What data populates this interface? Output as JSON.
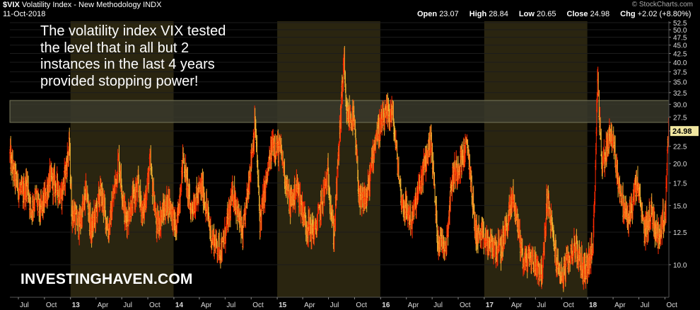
{
  "header": {
    "symbol": "$VIX",
    "name": "Volatility Index - New Methodology",
    "exchange": "INDX",
    "date": "11-Oct-2018",
    "watermark": "© StockCharts.com",
    "open_label": "Open",
    "open": "23.07",
    "high_label": "High",
    "high": "28.84",
    "low_label": "Low",
    "low": "20.65",
    "close_label": "Close",
    "close": "24.98",
    "chg_label": "Chg",
    "chg": "+2.02 (+8.80%)"
  },
  "annotation": {
    "lines": [
      "The volatility index VIX tested",
      "the level that in all but 2",
      "instances in the last 4 years",
      "provided stopping power!"
    ]
  },
  "brand": "INVESTINGHAVEN.COM",
  "colors": {
    "background": "#000000",
    "candle_down": "#ff2a00",
    "candle_up": "#f0b030",
    "year_band": "#2a2510",
    "resistance_band": "#3a3a2c",
    "last_label_bg": "#f0e6a0"
  },
  "chart_data": {
    "type": "line",
    "title": "$VIX Volatility Index - New Methodology INDX",
    "xlim": [
      "2012-06-01",
      "2018-10-15"
    ],
    "ylim": [
      8,
      53
    ],
    "y_scale": "log",
    "y_ticks": [
      10.0,
      12.5,
      15.0,
      17.5,
      20.0,
      22.5,
      25.0,
      27.5,
      30.0,
      32.5,
      35.0,
      37.5,
      40.0,
      42.5,
      45.0,
      47.5,
      50.0,
      52.5
    ],
    "x_ticks": [
      {
        "date": "2012-07-01",
        "label": "Jul"
      },
      {
        "date": "2012-10-01",
        "label": "Oct"
      },
      {
        "date": "2013-01-01",
        "label": "13"
      },
      {
        "date": "2013-04-01",
        "label": "Apr"
      },
      {
        "date": "2013-07-01",
        "label": "Jul"
      },
      {
        "date": "2013-10-01",
        "label": "Oct"
      },
      {
        "date": "2014-01-01",
        "label": "14"
      },
      {
        "date": "2014-04-01",
        "label": "Apr"
      },
      {
        "date": "2014-07-01",
        "label": "Jul"
      },
      {
        "date": "2014-10-01",
        "label": "Oct"
      },
      {
        "date": "2015-01-01",
        "label": "15"
      },
      {
        "date": "2015-04-01",
        "label": "Apr"
      },
      {
        "date": "2015-07-01",
        "label": "Jul"
      },
      {
        "date": "2015-10-01",
        "label": "Oct"
      },
      {
        "date": "2016-01-01",
        "label": "16"
      },
      {
        "date": "2016-04-01",
        "label": "Apr"
      },
      {
        "date": "2016-07-01",
        "label": "Jul"
      },
      {
        "date": "2016-10-01",
        "label": "Oct"
      },
      {
        "date": "2017-01-01",
        "label": "17"
      },
      {
        "date": "2017-04-01",
        "label": "Apr"
      },
      {
        "date": "2017-07-01",
        "label": "Jul"
      },
      {
        "date": "2017-10-01",
        "label": "Oct"
      },
      {
        "date": "2018-01-01",
        "label": "18"
      },
      {
        "date": "2018-04-01",
        "label": "Apr"
      },
      {
        "date": "2018-07-01",
        "label": "Jul"
      },
      {
        "date": "2018-10-01",
        "label": "Oct"
      }
    ],
    "shaded_years": [
      {
        "start": "2013-01-01",
        "end": "2013-12-31"
      },
      {
        "start": "2015-01-01",
        "end": "2015-12-31"
      },
      {
        "start": "2017-01-01",
        "end": "2017-12-31"
      }
    ],
    "resistance_zone": [
      26.5,
      30.8
    ],
    "last_value": "24.98",
    "series": [
      {
        "points": [
          {
            "x": "2012-06-01",
            "y": 21.0
          },
          {
            "x": "2012-06-15",
            "y": 18.5
          },
          {
            "x": "2012-07-01",
            "y": 17.0
          },
          {
            "x": "2012-07-15",
            "y": 16.0
          },
          {
            "x": "2012-08-01",
            "y": 17.5
          },
          {
            "x": "2012-08-15",
            "y": 14.5
          },
          {
            "x": "2012-09-01",
            "y": 16.0
          },
          {
            "x": "2012-09-15",
            "y": 14.2
          },
          {
            "x": "2012-10-01",
            "y": 15.5
          },
          {
            "x": "2012-10-20",
            "y": 18.0
          },
          {
            "x": "2012-11-15",
            "y": 17.0
          },
          {
            "x": "2012-12-01",
            "y": 16.0
          },
          {
            "x": "2012-12-28",
            "y": 22.5
          },
          {
            "x": "2013-01-05",
            "y": 14.5
          },
          {
            "x": "2013-02-01",
            "y": 13.0
          },
          {
            "x": "2013-02-26",
            "y": 16.5
          },
          {
            "x": "2013-03-15",
            "y": 12.5
          },
          {
            "x": "2013-04-18",
            "y": 16.5
          },
          {
            "x": "2013-05-15",
            "y": 12.5
          },
          {
            "x": "2013-06-20",
            "y": 20.5
          },
          {
            "x": "2013-07-15",
            "y": 13.5
          },
          {
            "x": "2013-08-27",
            "y": 17.0
          },
          {
            "x": "2013-09-15",
            "y": 14.0
          },
          {
            "x": "2013-10-09",
            "y": 20.0
          },
          {
            "x": "2013-11-01",
            "y": 13.0
          },
          {
            "x": "2013-12-15",
            "y": 15.5
          },
          {
            "x": "2014-01-10",
            "y": 12.5
          },
          {
            "x": "2014-02-03",
            "y": 21.0
          },
          {
            "x": "2014-03-01",
            "y": 14.5
          },
          {
            "x": "2014-04-11",
            "y": 17.0
          },
          {
            "x": "2014-05-15",
            "y": 12.0
          },
          {
            "x": "2014-06-20",
            "y": 11.0
          },
          {
            "x": "2014-07-31",
            "y": 16.5
          },
          {
            "x": "2014-09-01",
            "y": 12.0
          },
          {
            "x": "2014-10-15",
            "y": 26.5
          },
          {
            "x": "2014-11-01",
            "y": 13.5
          },
          {
            "x": "2014-12-16",
            "y": 23.0
          },
          {
            "x": "2015-01-15",
            "y": 21.5
          },
          {
            "x": "2015-02-15",
            "y": 15.0
          },
          {
            "x": "2015-03-11",
            "y": 17.0
          },
          {
            "x": "2015-04-15",
            "y": 13.0
          },
          {
            "x": "2015-05-15",
            "y": 12.5
          },
          {
            "x": "2015-06-29",
            "y": 18.5
          },
          {
            "x": "2015-07-20",
            "y": 12.0
          },
          {
            "x": "2015-08-24",
            "y": 40.7
          },
          {
            "x": "2015-09-01",
            "y": 28.0
          },
          {
            "x": "2015-09-28",
            "y": 27.0
          },
          {
            "x": "2015-10-20",
            "y": 15.0
          },
          {
            "x": "2015-11-15",
            "y": 16.0
          },
          {
            "x": "2015-12-14",
            "y": 24.0
          },
          {
            "x": "2016-01-20",
            "y": 27.6
          },
          {
            "x": "2016-02-11",
            "y": 28.5
          },
          {
            "x": "2016-03-15",
            "y": 15.5
          },
          {
            "x": "2016-04-20",
            "y": 13.5
          },
          {
            "x": "2016-06-27",
            "y": 23.8
          },
          {
            "x": "2016-07-20",
            "y": 12.0
          },
          {
            "x": "2016-08-20",
            "y": 11.5
          },
          {
            "x": "2016-09-09",
            "y": 18.0
          },
          {
            "x": "2016-11-04",
            "y": 22.5
          },
          {
            "x": "2016-12-01",
            "y": 12.5
          },
          {
            "x": "2017-01-15",
            "y": 11.5
          },
          {
            "x": "2017-03-01",
            "y": 11.0
          },
          {
            "x": "2017-04-13",
            "y": 16.0
          },
          {
            "x": "2017-05-20",
            "y": 10.2
          },
          {
            "x": "2017-06-15",
            "y": 10.5
          },
          {
            "x": "2017-07-26",
            "y": 9.4
          },
          {
            "x": "2017-08-11",
            "y": 16.0
          },
          {
            "x": "2017-09-15",
            "y": 10.0
          },
          {
            "x": "2017-10-05",
            "y": 9.2
          },
          {
            "x": "2017-11-15",
            "y": 11.5
          },
          {
            "x": "2017-12-20",
            "y": 9.5
          },
          {
            "x": "2018-01-20",
            "y": 11.0
          },
          {
            "x": "2018-02-06",
            "y": 37.3
          },
          {
            "x": "2018-02-20",
            "y": 19.5
          },
          {
            "x": "2018-03-23",
            "y": 24.9
          },
          {
            "x": "2018-04-06",
            "y": 21.5
          },
          {
            "x": "2018-05-01",
            "y": 15.5
          },
          {
            "x": "2018-05-25",
            "y": 13.5
          },
          {
            "x": "2018-06-25",
            "y": 17.5
          },
          {
            "x": "2018-07-20",
            "y": 12.5
          },
          {
            "x": "2018-08-15",
            "y": 14.5
          },
          {
            "x": "2018-09-05",
            "y": 12.0
          },
          {
            "x": "2018-10-04",
            "y": 14.5
          },
          {
            "x": "2018-10-11",
            "y": 24.98
          }
        ]
      }
    ]
  }
}
